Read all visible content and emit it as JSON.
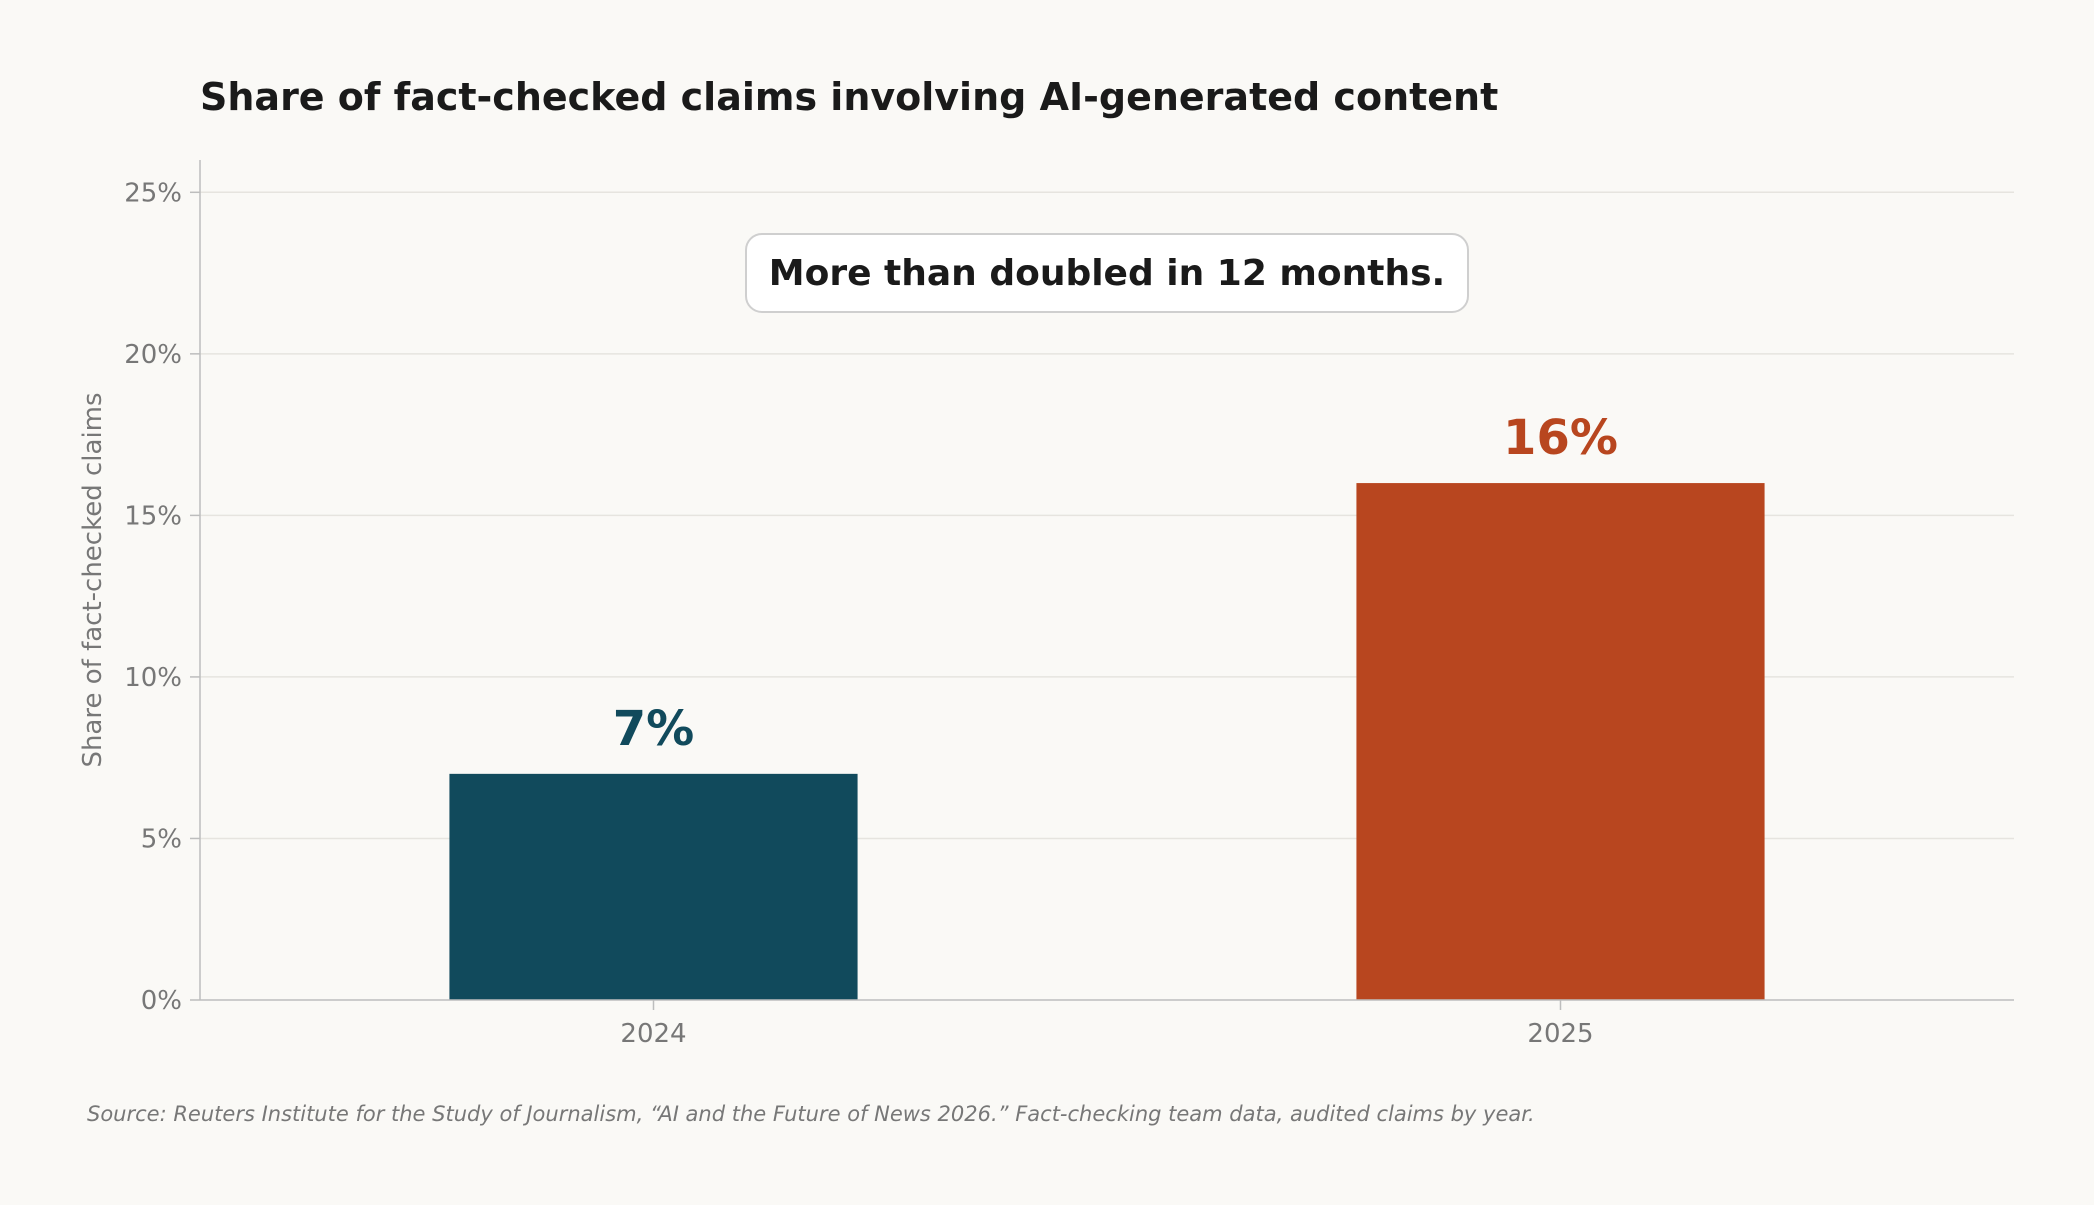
{
  "chart_data": {
    "type": "bar",
    "title": "Share of fact-checked claims involving AI-generated content",
    "xlabel": "",
    "ylabel": "Share of fact-checked claims",
    "categories": [
      "2024",
      "2025"
    ],
    "values": [
      7,
      16
    ],
    "value_labels": [
      "7%",
      "16%"
    ],
    "bar_colors": [
      "#114a5c",
      "#b8461f"
    ],
    "ylim": [
      0,
      26
    ],
    "yticks": [
      0,
      5,
      10,
      15,
      20,
      25
    ],
    "ytick_labels": [
      "0%",
      "5%",
      "10%",
      "15%",
      "20%",
      "25%"
    ],
    "grid": "horizontal",
    "legend": "none",
    "annotation": "More than doubled in 12 months.",
    "source": "Source: Reuters Institute for the Study of Journalism, “AI and the Future of News 2026.” Fact-checking team data, audited claims by year."
  },
  "colors": {
    "background": "#faf9f6",
    "grid": "#e6e4df",
    "axis": "#bdbdbd",
    "text_dark": "#1a1a1a",
    "text_muted": "#777777"
  }
}
